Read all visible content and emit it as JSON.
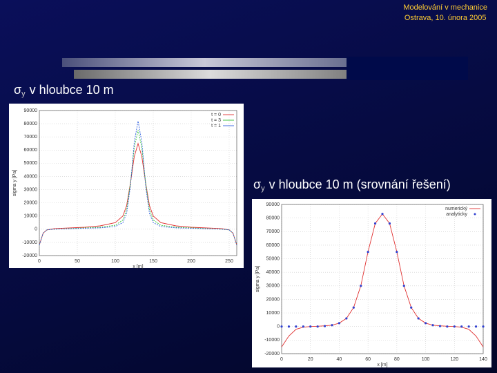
{
  "header": {
    "line1": "Modelování v mechanice",
    "line2": "Ostrava, 10. února 2005"
  },
  "headings": [
    {
      "symbol": "σ",
      "subscript": "y",
      "text": "v hloubce 10 m"
    },
    {
      "symbol": "σ",
      "subscript": "y",
      "text": "v hloubce 10 m (srovnání řešení)"
    }
  ],
  "chart_data": [
    {
      "type": "line",
      "xlabel": "x [m]",
      "ylabel": "sigma y [Pa]",
      "x": [
        0,
        5,
        10,
        20,
        40,
        60,
        80,
        100,
        110,
        115,
        120,
        125,
        130,
        135,
        140,
        145,
        150,
        160,
        180,
        200,
        220,
        240,
        250,
        255,
        260
      ],
      "xlim": [
        0,
        260
      ],
      "xticks": [
        0,
        50,
        100,
        150,
        200,
        250
      ],
      "ylim": [
        -20000,
        90000
      ],
      "yticks": [
        -20000,
        -10000,
        0,
        10000,
        20000,
        30000,
        40000,
        50000,
        60000,
        70000,
        80000,
        90000
      ],
      "grid": true,
      "legend": "top-right",
      "series": [
        {
          "name": "t = 0",
          "color": "#e03030",
          "mode": "line",
          "values": [
            -12000,
            -3000,
            -500,
            500,
            1000,
            1500,
            2500,
            5000,
            10000,
            18000,
            35000,
            55000,
            65000,
            55000,
            35000,
            18000,
            10000,
            5000,
            2500,
            1500,
            1000,
            500,
            -500,
            -3000,
            -12000
          ]
        },
        {
          "name": "t = 3",
          "color": "#30c030",
          "mode": "line",
          "values": [
            -12000,
            -3000,
            -500,
            0,
            500,
            1000,
            1500,
            3000,
            7000,
            15000,
            35000,
            62000,
            75000,
            62000,
            35000,
            15000,
            7000,
            3000,
            1500,
            1000,
            500,
            0,
            -500,
            -3000,
            -12000
          ]
        },
        {
          "name": "t = 1",
          "color": "#3060e0",
          "mode": "line",
          "values": [
            -12000,
            -3000,
            -500,
            0,
            300,
            700,
            1000,
            2000,
            5000,
            12000,
            33000,
            66000,
            82000,
            66000,
            33000,
            12000,
            5000,
            2000,
            1000,
            700,
            300,
            0,
            -500,
            -3000,
            -12000
          ]
        }
      ]
    },
    {
      "type": "line",
      "xlabel": "x [m]",
      "ylabel": "sigma y [Pa]",
      "x": [
        0,
        5,
        10,
        15,
        20,
        25,
        30,
        35,
        40,
        45,
        50,
        55,
        60,
        65,
        70,
        75,
        80,
        85,
        90,
        95,
        100,
        105,
        110,
        115,
        120,
        125,
        130,
        135,
        140
      ],
      "xlim": [
        0,
        140
      ],
      "xticks": [
        0,
        20,
        40,
        60,
        80,
        100,
        120,
        140
      ],
      "ylim": [
        -20000,
        90000
      ],
      "yticks": [
        -20000,
        -10000,
        0,
        10000,
        20000,
        30000,
        40000,
        50000,
        60000,
        70000,
        80000,
        90000
      ],
      "grid": true,
      "legend": "top-right",
      "series": [
        {
          "name": "numerický",
          "color": "#e03030",
          "mode": "line",
          "values": [
            -15000,
            -7000,
            -2000,
            -500,
            0,
            200,
            500,
            1000,
            2500,
            6000,
            14000,
            30000,
            55000,
            76000,
            83000,
            76000,
            55000,
            30000,
            14000,
            6000,
            2500,
            1000,
            500,
            200,
            0,
            -500,
            -2000,
            -7000,
            -15000
          ]
        },
        {
          "name": "analyticky",
          "color": "#3040d0",
          "mode": "points",
          "values": [
            0,
            0,
            0,
            0,
            0,
            0,
            300,
            1000,
            2500,
            6000,
            14000,
            30000,
            55000,
            76000,
            83000,
            76000,
            55000,
            30000,
            14000,
            6000,
            2500,
            1000,
            300,
            0,
            0,
            0,
            0,
            0,
            0
          ]
        }
      ]
    }
  ]
}
